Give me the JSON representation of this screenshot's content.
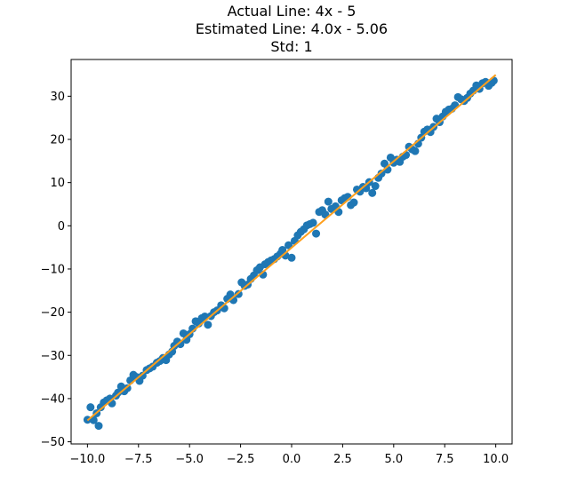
{
  "chart_data": {
    "type": "scatter",
    "title_lines": [
      "Actual Line: 4x - 5",
      "Estimated Line: 4.0x - 5.06",
      "Std: 1"
    ],
    "xlabel": "",
    "ylabel": "",
    "xlim": [
      -10.8,
      10.8
    ],
    "ylim": [
      -50.5,
      38.5
    ],
    "xticks": [
      -10.0,
      -7.5,
      -5.0,
      -2.5,
      0.0,
      2.5,
      5.0,
      7.5,
      10.0
    ],
    "xtick_labels": [
      "−10.0",
      "−7.5",
      "−5.0",
      "−2.5",
      "0.0",
      "2.5",
      "5.0",
      "7.5",
      "10.0"
    ],
    "yticks": [
      -50,
      -40,
      -30,
      -20,
      -10,
      0,
      10,
      20,
      30
    ],
    "ytick_labels": [
      "−50",
      "−40",
      "−30",
      "−20",
      "−10",
      "0",
      "10",
      "20",
      "30"
    ],
    "grid": false,
    "colors": {
      "points": "#1f77b4",
      "fit_line": "#ff9f1c"
    },
    "series": [
      {
        "type": "scatter",
        "points": [
          [
            -10.0,
            -44.9
          ],
          [
            -9.85,
            -42.0
          ],
          [
            -9.7,
            -45.0
          ],
          [
            -9.55,
            -43.4
          ],
          [
            -9.45,
            -46.3
          ],
          [
            -9.35,
            -42.0
          ],
          [
            -9.2,
            -40.9
          ],
          [
            -9.05,
            -40.4
          ],
          [
            -8.9,
            -40.0
          ],
          [
            -8.8,
            -41.1
          ],
          [
            -8.6,
            -39.3
          ],
          [
            -8.5,
            -38.6
          ],
          [
            -8.35,
            -37.2
          ],
          [
            -8.2,
            -38.3
          ],
          [
            -8.05,
            -37.6
          ],
          [
            -7.9,
            -35.8
          ],
          [
            -7.75,
            -34.5
          ],
          [
            -7.6,
            -35.0
          ],
          [
            -7.45,
            -35.9
          ],
          [
            -7.3,
            -34.7
          ],
          [
            -7.1,
            -33.4
          ],
          [
            -6.95,
            -33.0
          ],
          [
            -6.8,
            -32.6
          ],
          [
            -6.6,
            -31.7
          ],
          [
            -6.45,
            -31.3
          ],
          [
            -6.3,
            -30.6
          ],
          [
            -6.15,
            -31.1
          ],
          [
            -6.0,
            -29.8
          ],
          [
            -5.85,
            -29.1
          ],
          [
            -5.75,
            -27.8
          ],
          [
            -5.6,
            -26.8
          ],
          [
            -5.45,
            -27.4
          ],
          [
            -5.3,
            -24.9
          ],
          [
            -5.15,
            -26.4
          ],
          [
            -5.0,
            -25.1
          ],
          [
            -4.85,
            -23.8
          ],
          [
            -4.7,
            -22.1
          ],
          [
            -4.55,
            -22.6
          ],
          [
            -4.4,
            -21.4
          ],
          [
            -4.25,
            -21.0
          ],
          [
            -4.1,
            -22.9
          ],
          [
            -3.95,
            -20.9
          ],
          [
            -3.8,
            -20.0
          ],
          [
            -3.65,
            -19.6
          ],
          [
            -3.45,
            -18.4
          ],
          [
            -3.3,
            -19.1
          ],
          [
            -3.15,
            -16.9
          ],
          [
            -3.0,
            -15.9
          ],
          [
            -2.85,
            -17.2
          ],
          [
            -2.6,
            -15.8
          ],
          [
            -2.45,
            -13.1
          ],
          [
            -2.3,
            -13.9
          ],
          [
            -2.15,
            -13.6
          ],
          [
            -2.0,
            -12.3
          ],
          [
            -1.85,
            -11.5
          ],
          [
            -1.7,
            -10.3
          ],
          [
            -1.55,
            -9.6
          ],
          [
            -1.4,
            -11.3
          ],
          [
            -1.3,
            -8.9
          ],
          [
            -1.15,
            -8.4
          ],
          [
            -1.0,
            -8.0
          ],
          [
            -0.85,
            -7.7
          ],
          [
            -0.7,
            -7.1
          ],
          [
            -0.55,
            -6.5
          ],
          [
            -0.45,
            -5.6
          ],
          [
            -0.3,
            -6.9
          ],
          [
            -0.15,
            -4.5
          ],
          [
            0.0,
            -7.4
          ],
          [
            0.15,
            -3.5
          ],
          [
            0.3,
            -2.2
          ],
          [
            0.45,
            -1.4
          ],
          [
            0.6,
            -0.8
          ],
          [
            0.75,
            0.1
          ],
          [
            0.9,
            0.4
          ],
          [
            1.05,
            0.7
          ],
          [
            1.2,
            -1.8
          ],
          [
            1.35,
            3.2
          ],
          [
            1.5,
            3.6
          ],
          [
            1.65,
            2.6
          ],
          [
            1.8,
            5.6
          ],
          [
            1.95,
            3.9
          ],
          [
            2.15,
            4.5
          ],
          [
            2.3,
            3.2
          ],
          [
            2.45,
            5.9
          ],
          [
            2.6,
            6.4
          ],
          [
            2.75,
            6.7
          ],
          [
            2.9,
            4.8
          ],
          [
            3.05,
            5.4
          ],
          [
            3.2,
            8.4
          ],
          [
            3.35,
            7.9
          ],
          [
            3.5,
            9.0
          ],
          [
            3.65,
            8.7
          ],
          [
            3.8,
            10.1
          ],
          [
            3.95,
            7.6
          ],
          [
            4.1,
            9.2
          ],
          [
            4.25,
            11.1
          ],
          [
            4.4,
            12.1
          ],
          [
            4.55,
            14.4
          ],
          [
            4.7,
            13.0
          ],
          [
            4.85,
            15.8
          ],
          [
            5.0,
            14.6
          ],
          [
            5.15,
            15.3
          ],
          [
            5.3,
            14.8
          ],
          [
            5.45,
            16.0
          ],
          [
            5.6,
            16.4
          ],
          [
            5.75,
            18.3
          ],
          [
            5.9,
            17.7
          ],
          [
            6.05,
            17.3
          ],
          [
            6.2,
            19.0
          ],
          [
            6.35,
            20.4
          ],
          [
            6.5,
            21.8
          ],
          [
            6.65,
            22.3
          ],
          [
            6.8,
            21.7
          ],
          [
            6.95,
            22.9
          ],
          [
            7.1,
            24.8
          ],
          [
            7.25,
            24.0
          ],
          [
            7.4,
            25.3
          ],
          [
            7.55,
            26.4
          ],
          [
            7.7,
            26.9
          ],
          [
            7.85,
            27.1
          ],
          [
            8.0,
            27.9
          ],
          [
            8.15,
            29.8
          ],
          [
            8.3,
            29.3
          ],
          [
            8.45,
            28.9
          ],
          [
            8.6,
            29.6
          ],
          [
            8.75,
            30.6
          ],
          [
            8.9,
            31.3
          ],
          [
            9.05,
            32.5
          ],
          [
            9.2,
            31.7
          ],
          [
            9.35,
            33.0
          ],
          [
            9.5,
            33.3
          ],
          [
            9.65,
            32.4
          ],
          [
            9.8,
            33.1
          ],
          [
            9.9,
            33.6
          ]
        ]
      },
      {
        "type": "line",
        "x": [
          -10.0,
          10.0
        ],
        "y": [
          -45.06,
          34.94
        ]
      }
    ]
  }
}
